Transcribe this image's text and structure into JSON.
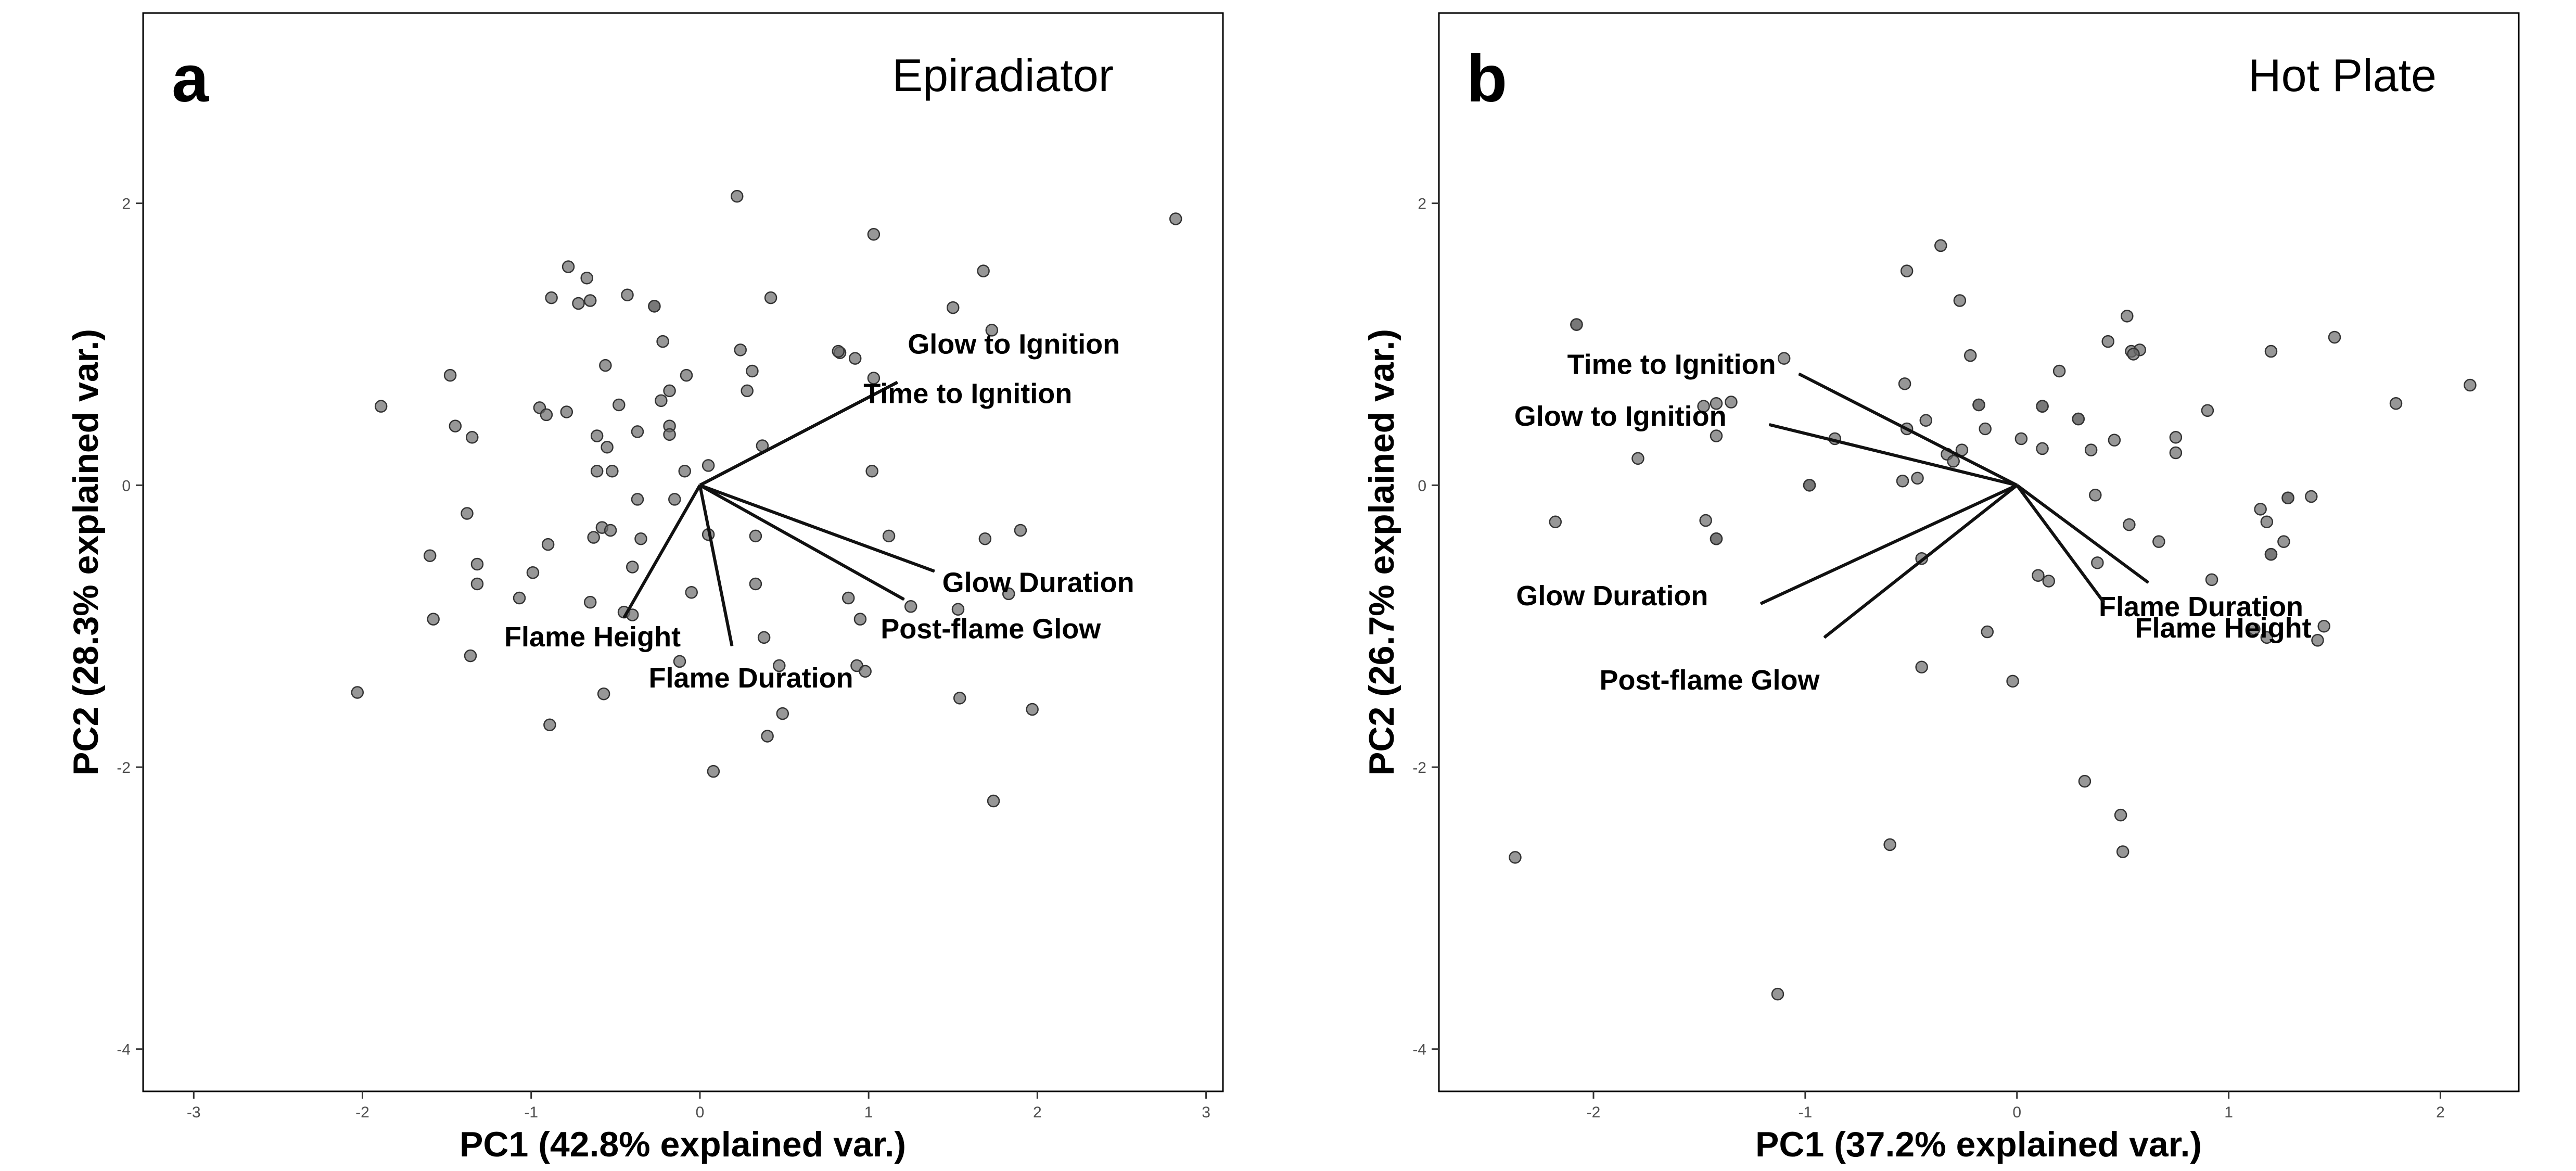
{
  "chart_data": [
    {
      "type": "scatter",
      "panel_letter": "a",
      "title": "Epiradiator",
      "xlabel": "PC1 (42.8% explained var.)",
      "ylabel": "PC2 (28.3% explained var.)",
      "xlim": [
        -3.3,
        3.1
      ],
      "ylim": [
        -4.3,
        3.35
      ],
      "xticks": [
        -3,
        -2,
        -1,
        0,
        1,
        2,
        3
      ],
      "yticks": [
        -4,
        -2,
        0,
        2
      ],
      "grid": false,
      "points": [
        [
          0.22,
          2.05
        ],
        [
          1.03,
          1.78
        ],
        [
          2.82,
          1.89
        ],
        [
          -0.78,
          1.55
        ],
        [
          -0.67,
          1.47
        ],
        [
          -0.88,
          1.33
        ],
        [
          -0.72,
          1.29
        ],
        [
          -0.65,
          1.31
        ],
        [
          -0.43,
          1.35
        ],
        [
          -0.27,
          1.27
        ],
        [
          -0.22,
          1.02
        ],
        [
          1.68,
          1.52
        ],
        [
          1.5,
          1.26
        ],
        [
          1.73,
          1.1
        ],
        [
          0.42,
          1.33
        ],
        [
          0.83,
          0.94
        ],
        [
          0.92,
          0.9
        ],
        [
          -0.56,
          0.85
        ],
        [
          -0.08,
          0.78
        ],
        [
          0.24,
          0.96
        ],
        [
          0.31,
          0.81
        ],
        [
          -1.48,
          0.78
        ],
        [
          -1.89,
          0.56
        ],
        [
          -0.95,
          0.55
        ],
        [
          -0.91,
          0.5
        ],
        [
          -0.79,
          0.52
        ],
        [
          -0.48,
          0.57
        ],
        [
          -0.18,
          0.67
        ],
        [
          -0.23,
          0.6
        ],
        [
          -0.18,
          0.42
        ],
        [
          -1.45,
          0.42
        ],
        [
          -1.35,
          0.34
        ],
        [
          -0.61,
          0.35
        ],
        [
          -0.55,
          0.27
        ],
        [
          -0.37,
          0.38
        ],
        [
          -0.18,
          0.36
        ],
        [
          0.28,
          0.67
        ],
        [
          1.03,
          0.76
        ],
        [
          0.37,
          0.28
        ],
        [
          -0.61,
          0.1
        ],
        [
          -0.52,
          0.1
        ],
        [
          -0.09,
          0.1
        ],
        [
          0.05,
          0.14
        ],
        [
          1.02,
          0.1
        ],
        [
          -0.15,
          -0.1
        ],
        [
          -0.37,
          -0.1
        ],
        [
          -0.58,
          -0.3
        ],
        [
          -0.53,
          -0.32
        ],
        [
          -0.63,
          -0.37
        ],
        [
          -0.35,
          -0.38
        ],
        [
          -1.38,
          -0.2
        ],
        [
          -1.6,
          -0.5
        ],
        [
          -1.32,
          -0.56
        ],
        [
          -1.32,
          -0.7
        ],
        [
          -0.99,
          -0.62
        ],
        [
          -0.9,
          -0.42
        ],
        [
          -0.4,
          -0.58
        ],
        [
          0.05,
          -0.35
        ],
        [
          0.33,
          -0.36
        ],
        [
          0.33,
          -0.7
        ],
        [
          1.12,
          -0.36
        ],
        [
          1.69,
          -0.38
        ],
        [
          1.9,
          -0.32
        ],
        [
          -0.05,
          -0.76
        ],
        [
          -1.07,
          -0.8
        ],
        [
          -0.65,
          -0.83
        ],
        [
          -0.45,
          -0.9
        ],
        [
          -0.4,
          -0.92
        ],
        [
          0.88,
          -0.8
        ],
        [
          1.25,
          -0.86
        ],
        [
          1.53,
          -0.88
        ],
        [
          1.83,
          -0.77
        ],
        [
          0.38,
          -1.08
        ],
        [
          0.95,
          -0.95
        ],
        [
          -1.58,
          -0.95
        ],
        [
          -1.36,
          -1.21
        ],
        [
          -0.57,
          -1.48
        ],
        [
          -0.12,
          -1.25
        ],
        [
          0.47,
          -1.28
        ],
        [
          0.93,
          -1.28
        ],
        [
          0.98,
          -1.32
        ],
        [
          0.49,
          -1.62
        ],
        [
          0.4,
          -1.78
        ],
        [
          -0.89,
          -1.7
        ],
        [
          -2.03,
          -1.47
        ],
        [
          1.54,
          -1.51
        ],
        [
          1.97,
          -1.59
        ],
        [
          0.08,
          -2.03
        ],
        [
          1.74,
          -2.24
        ]
      ],
      "dark_points": [
        [
          -0.27,
          1.27
        ],
        [
          0.82,
          0.95
        ]
      ],
      "loadings": [
        {
          "label": "Glow to Ignition",
          "x": 1.17,
          "y": 0.73
        },
        {
          "label": "Time to Ignition",
          "x": 1.17,
          "y": 0.73
        },
        {
          "label": "Glow Duration",
          "x": 1.39,
          "y": -0.61
        },
        {
          "label": "Post-flame Glow",
          "x": 1.21,
          "y": -0.81
        },
        {
          "label": "Flame Height",
          "x": -0.45,
          "y": -0.94
        },
        {
          "label": "Flame Duration",
          "x": 0.19,
          "y": -1.14
        }
      ]
    },
    {
      "type": "scatter",
      "panel_letter": "b",
      "title": "Hot Plate",
      "xlabel": "PC1 (37.2% explained var.)",
      "ylabel": "PC2 (26.7% explained var.)",
      "xlim": [
        -2.73,
        2.37
      ],
      "ylim": [
        -4.3,
        3.35
      ],
      "xticks": [
        -2,
        -1,
        0,
        1,
        2
      ],
      "yticks": [
        -4,
        -2,
        0,
        2
      ],
      "grid": false,
      "points": [
        [
          -0.36,
          1.7
        ],
        [
          -0.52,
          1.52
        ],
        [
          -0.27,
          1.31
        ],
        [
          0.52,
          1.2
        ],
        [
          1.5,
          1.05
        ],
        [
          0.43,
          1.02
        ],
        [
          0.54,
          0.95
        ],
        [
          0.58,
          0.96
        ],
        [
          1.2,
          0.95
        ],
        [
          -2.08,
          1.14
        ],
        [
          -0.22,
          0.92
        ],
        [
          0.2,
          0.81
        ],
        [
          -1.1,
          0.9
        ],
        [
          -0.53,
          0.72
        ],
        [
          -1.42,
          0.58
        ],
        [
          -1.35,
          0.59
        ],
        [
          -1.48,
          0.56
        ],
        [
          -0.18,
          0.57
        ],
        [
          0.12,
          0.56
        ],
        [
          0.29,
          0.47
        ],
        [
          -0.43,
          0.46
        ],
        [
          -0.52,
          0.4
        ],
        [
          -0.15,
          0.4
        ],
        [
          0.46,
          0.32
        ],
        [
          0.75,
          0.34
        ],
        [
          0.9,
          0.53
        ],
        [
          1.79,
          0.58
        ],
        [
          2.14,
          0.71
        ],
        [
          -1.42,
          0.35
        ],
        [
          -0.86,
          0.33
        ],
        [
          -0.33,
          0.22
        ],
        [
          -0.26,
          0.25
        ],
        [
          -0.3,
          0.17
        ],
        [
          0.02,
          0.33
        ],
        [
          0.12,
          0.26
        ],
        [
          0.35,
          0.25
        ],
        [
          0.75,
          0.23
        ],
        [
          -1.79,
          0.19
        ],
        [
          -0.54,
          0.03
        ],
        [
          -0.47,
          0.05
        ],
        [
          -0.98,
          0.0
        ],
        [
          0.37,
          -0.07
        ],
        [
          1.28,
          -0.09
        ],
        [
          1.39,
          -0.08
        ],
        [
          -2.18,
          -0.26
        ],
        [
          -1.47,
          -0.25
        ],
        [
          -1.42,
          -0.38
        ],
        [
          1.15,
          -0.17
        ],
        [
          1.18,
          -0.26
        ],
        [
          1.26,
          -0.4
        ],
        [
          0.53,
          -0.28
        ],
        [
          0.67,
          -0.4
        ],
        [
          1.2,
          -0.49
        ],
        [
          -0.45,
          -0.52
        ],
        [
          0.1,
          -0.64
        ],
        [
          0.15,
          -0.68
        ],
        [
          0.38,
          -0.55
        ],
        [
          0.92,
          -0.67
        ],
        [
          1.12,
          -1.02
        ],
        [
          1.18,
          -1.08
        ],
        [
          1.42,
          -1.1
        ],
        [
          1.45,
          -1.0
        ],
        [
          -0.14,
          -1.04
        ],
        [
          -0.45,
          -1.29
        ],
        [
          -0.02,
          -1.39
        ],
        [
          0.32,
          -2.1
        ],
        [
          0.49,
          -2.34
        ],
        [
          0.5,
          -2.6
        ],
        [
          -0.6,
          -2.55
        ],
        [
          -2.37,
          -2.64
        ],
        [
          -1.13,
          -3.61
        ]
      ],
      "dark_points": [
        [
          -2.08,
          1.14
        ],
        [
          0.55,
          0.93
        ],
        [
          -0.18,
          0.57
        ],
        [
          0.12,
          0.56
        ],
        [
          0.29,
          0.47
        ],
        [
          -0.98,
          0.0
        ],
        [
          1.28,
          -0.09
        ],
        [
          1.2,
          -0.49
        ],
        [
          -1.42,
          -0.38
        ]
      ],
      "loadings": [
        {
          "label": "Time to Ignition",
          "x": -1.03,
          "y": 0.79
        },
        {
          "label": "Glow to Ignition",
          "x": -1.17,
          "y": 0.43
        },
        {
          "label": "Glow Duration",
          "x": -1.21,
          "y": -0.84
        },
        {
          "label": "Post-flame Glow",
          "x": -0.91,
          "y": -1.08
        },
        {
          "label": "Flame Duration",
          "x": 0.62,
          "y": -0.69
        },
        {
          "label": "Flame Height",
          "x": 0.41,
          "y": -0.83
        }
      ]
    }
  ]
}
